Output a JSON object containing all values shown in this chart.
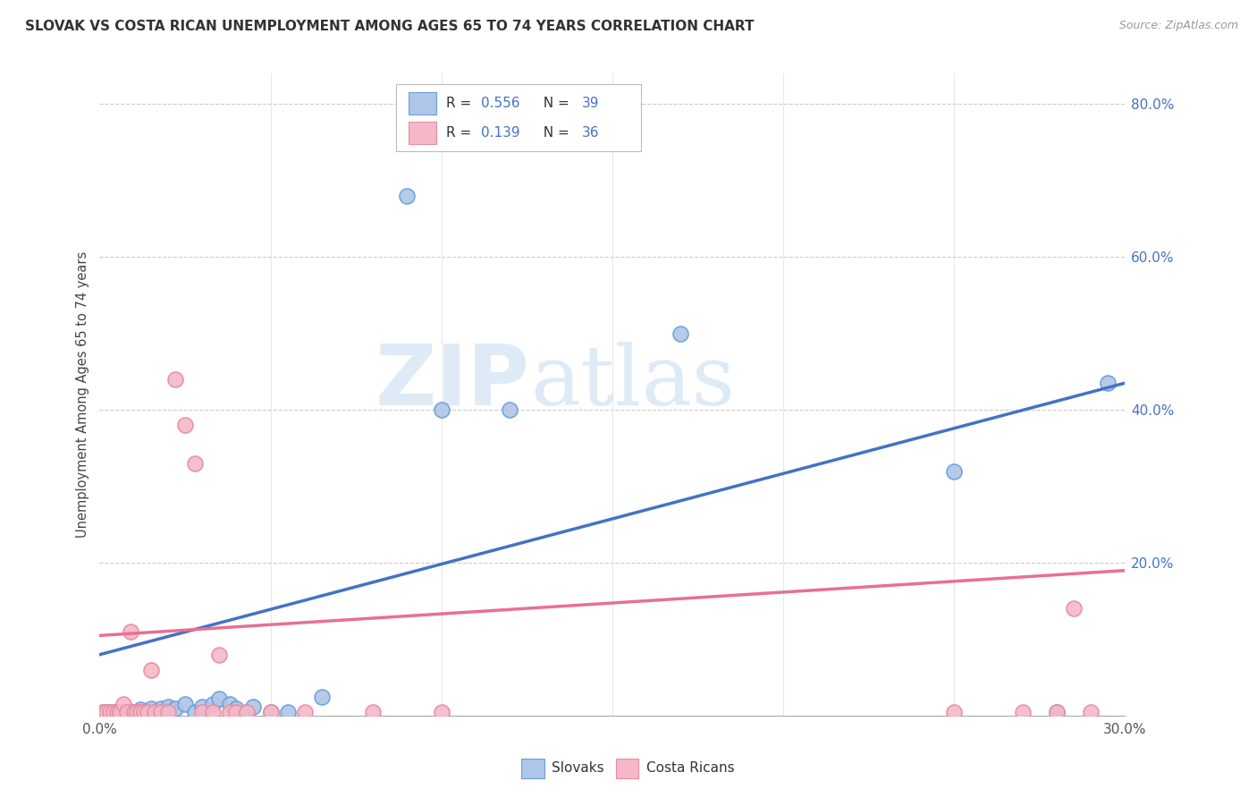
{
  "title": "SLOVAK VS COSTA RICAN UNEMPLOYMENT AMONG AGES 65 TO 74 YEARS CORRELATION CHART",
  "source": "Source: ZipAtlas.com",
  "ylabel": "Unemployment Among Ages 65 to 74 years",
  "slovak_color": "#aec6e8",
  "costarican_color": "#f4b8c8",
  "slovak_edge_color": "#6a9fd8",
  "costarican_edge_color": "#e88ca0",
  "slovak_line_color": "#4472c4",
  "costarican_line_color": "#e87090",
  "r1": "0.556",
  "n1": "39",
  "r2": "0.139",
  "n2": "36",
  "xlim": [
    0.0,
    0.3
  ],
  "ylim": [
    0.0,
    0.84
  ],
  "slovak_x": [
    0.001,
    0.002,
    0.003,
    0.004,
    0.005,
    0.006,
    0.007,
    0.008,
    0.009,
    0.01,
    0.011,
    0.012,
    0.013,
    0.014,
    0.015,
    0.016,
    0.017,
    0.018,
    0.02,
    0.022,
    0.025,
    0.028,
    0.03,
    0.033,
    0.035,
    0.038,
    0.04,
    0.043,
    0.045,
    0.05,
    0.055,
    0.065,
    0.09,
    0.1,
    0.12,
    0.17,
    0.25,
    0.28,
    0.295
  ],
  "slovak_y": [
    0.005,
    0.005,
    0.005,
    0.005,
    0.005,
    0.005,
    0.005,
    0.005,
    0.005,
    0.005,
    0.005,
    0.008,
    0.005,
    0.005,
    0.01,
    0.005,
    0.005,
    0.01,
    0.012,
    0.01,
    0.015,
    0.005,
    0.012,
    0.015,
    0.022,
    0.015,
    0.01,
    0.005,
    0.012,
    0.005,
    0.005,
    0.025,
    0.68,
    0.4,
    0.4,
    0.5,
    0.32,
    0.005,
    0.435
  ],
  "cr_x": [
    0.001,
    0.002,
    0.003,
    0.004,
    0.005,
    0.006,
    0.007,
    0.008,
    0.009,
    0.01,
    0.011,
    0.012,
    0.013,
    0.014,
    0.015,
    0.016,
    0.018,
    0.02,
    0.022,
    0.025,
    0.028,
    0.03,
    0.033,
    0.035,
    0.038,
    0.04,
    0.043,
    0.05,
    0.06,
    0.08,
    0.1,
    0.25,
    0.27,
    0.28,
    0.285,
    0.29
  ],
  "cr_y": [
    0.005,
    0.005,
    0.005,
    0.005,
    0.005,
    0.005,
    0.015,
    0.005,
    0.11,
    0.005,
    0.005,
    0.005,
    0.005,
    0.005,
    0.06,
    0.005,
    0.005,
    0.005,
    0.44,
    0.38,
    0.33,
    0.005,
    0.005,
    0.08,
    0.005,
    0.005,
    0.005,
    0.005,
    0.005,
    0.005,
    0.005,
    0.005,
    0.005,
    0.005,
    0.14,
    0.005
  ],
  "sk_trend_x": [
    0.0,
    0.3
  ],
  "sk_trend_y": [
    0.08,
    0.435
  ],
  "cr_trend_x": [
    0.0,
    0.3
  ],
  "cr_trend_y": [
    0.105,
    0.19
  ]
}
